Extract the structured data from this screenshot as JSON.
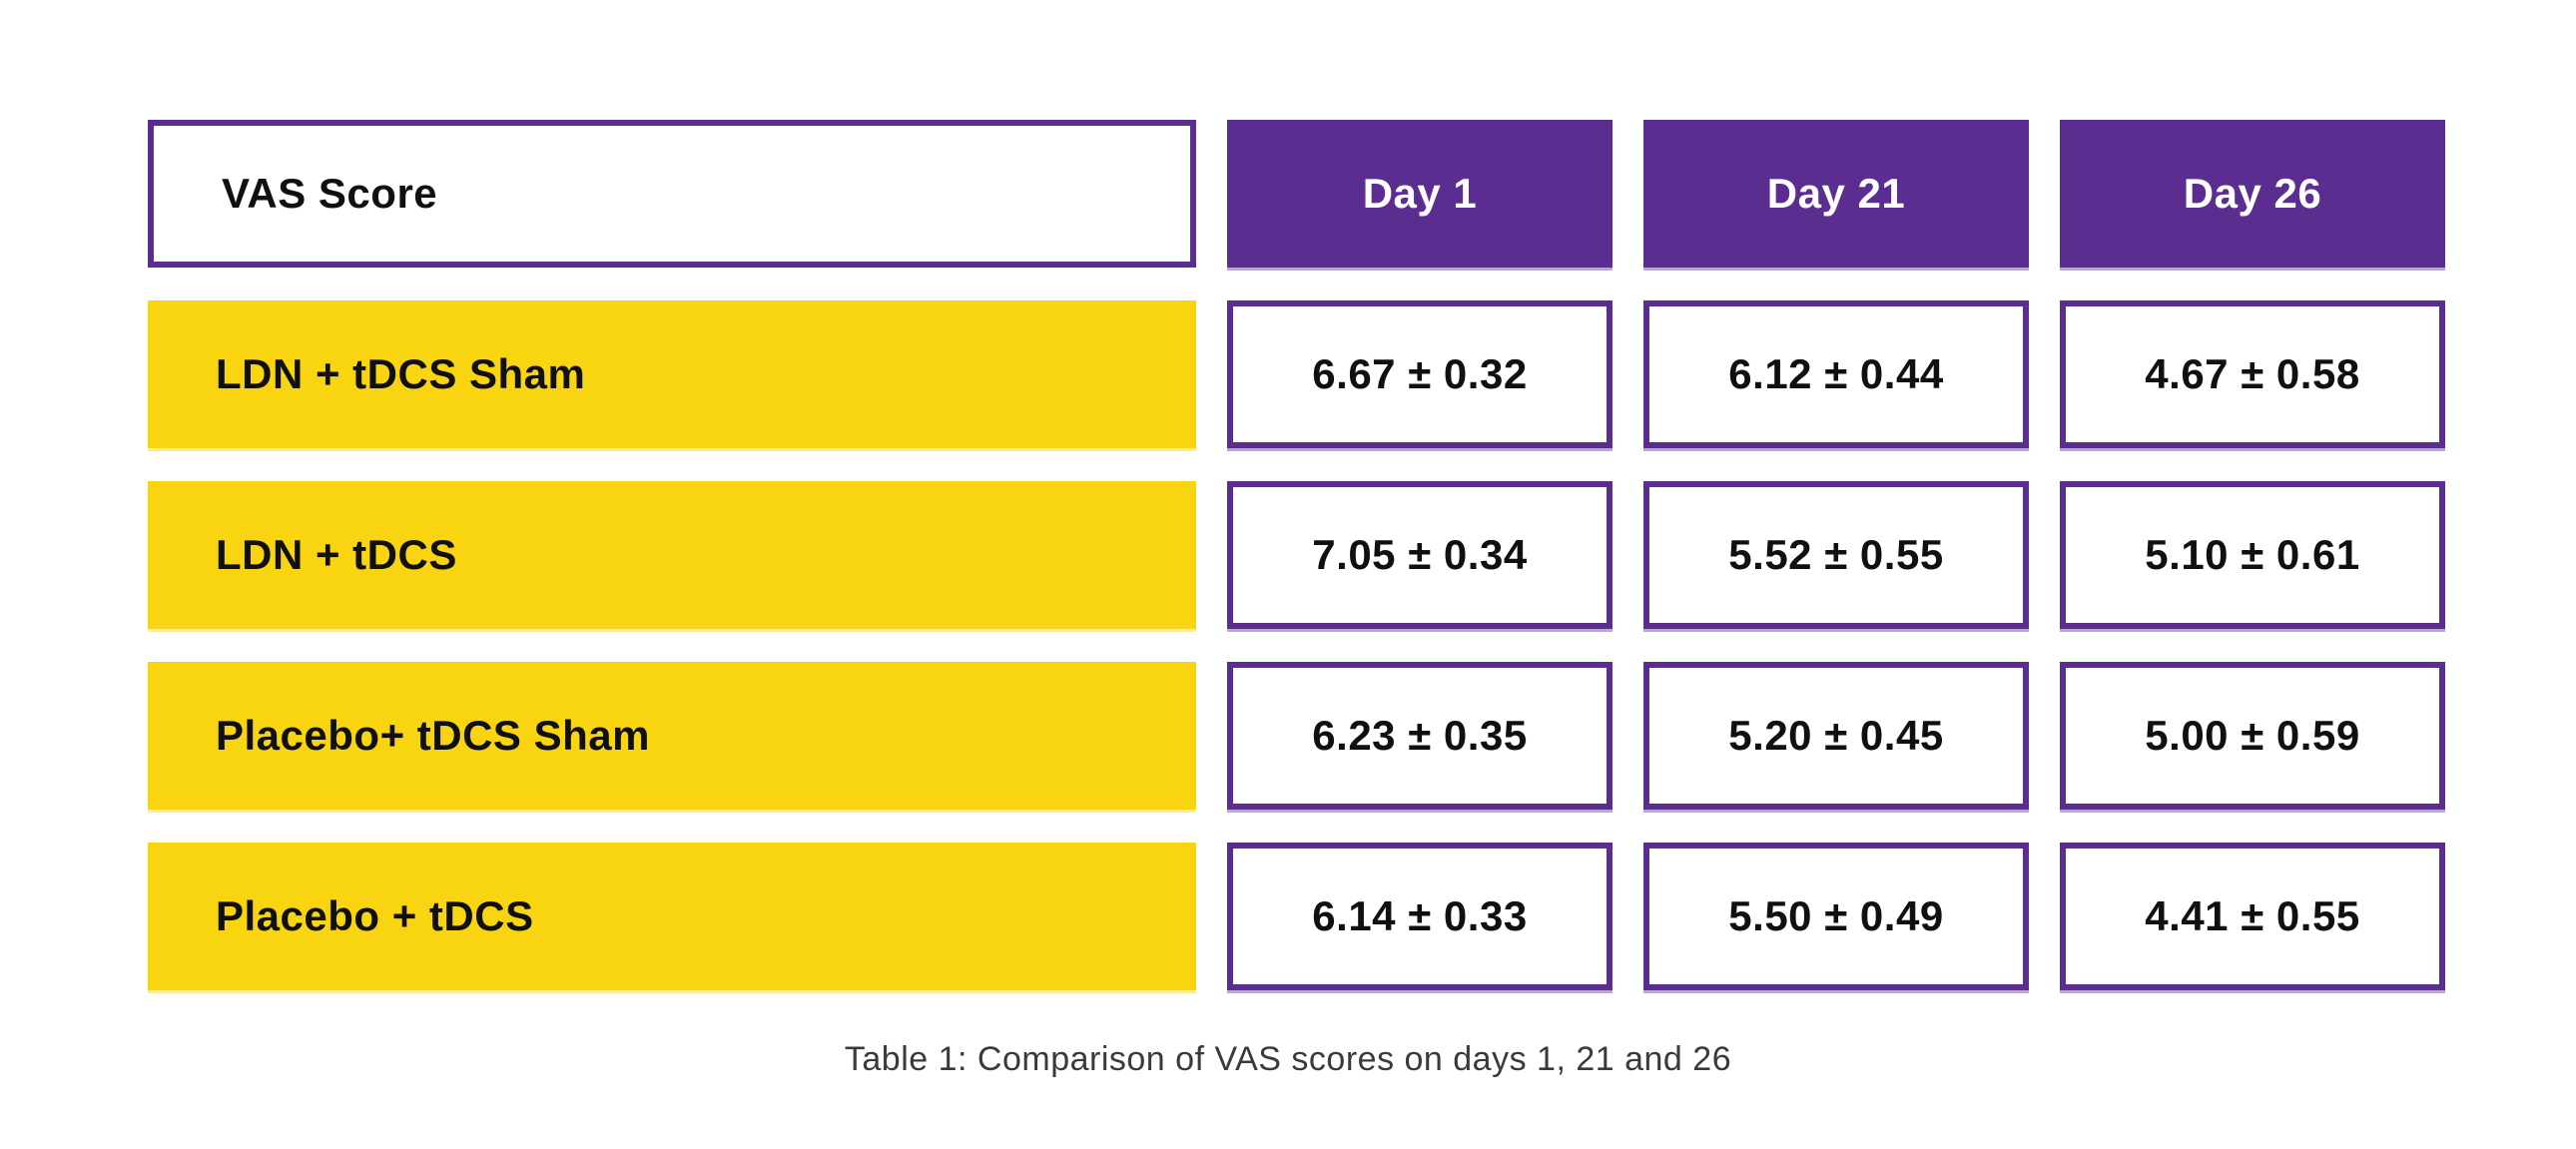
{
  "table": {
    "header": {
      "label": "VAS Score",
      "columns": [
        "Day 1",
        "Day 21",
        "Day 26"
      ]
    },
    "rows": [
      {
        "label": "LDN + tDCS Sham",
        "values": [
          "6.67 ± 0.32",
          "6.12 ± 0.44",
          "4.67 ± 0.58"
        ]
      },
      {
        "label": "LDN + tDCS",
        "values": [
          "7.05 ± 0.34",
          "5.52 ± 0.55",
          "5.10 ± 0.61"
        ]
      },
      {
        "label": "Placebo+ tDCS Sham",
        "values": [
          "6.23 ± 0.35",
          "5.20 ± 0.45",
          "5.00 ± 0.59"
        ]
      },
      {
        "label": "Placebo + tDCS",
        "values": [
          "6.14 ± 0.33",
          "5.50 ± 0.49",
          "4.41 ± 0.55"
        ]
      }
    ],
    "caption": "Table 1: Comparison of VAS scores on days 1, 21 and 26"
  },
  "colors": {
    "purple": "#5b2d91",
    "yellow": "#f8d411",
    "cell-text": "#101010",
    "caption-text": "#3a3a3a"
  },
  "chart_data": {
    "type": "table",
    "title": "Table 1: Comparison of VAS scores on days 1, 21 and 26",
    "columns": [
      "VAS Score",
      "Day 1",
      "Day 21",
      "Day 26"
    ],
    "rows": [
      [
        "LDN + tDCS Sham",
        "6.67 ± 0.32",
        "6.12 ± 0.44",
        "4.67 ± 0.58"
      ],
      [
        "LDN + tDCS",
        "7.05 ± 0.34",
        "5.52 ± 0.55",
        "5.10 ± 0.61"
      ],
      [
        "Placebo+ tDCS Sham",
        "6.23 ± 0.35",
        "5.20 ± 0.45",
        "5.00 ± 0.59"
      ],
      [
        "Placebo + tDCS",
        "6.14 ± 0.33",
        "5.50 ± 0.49",
        "4.41 ± 0.55"
      ]
    ],
    "values_numeric": {
      "means": [
        [
          6.67,
          6.12,
          4.67
        ],
        [
          7.05,
          5.52,
          5.1
        ],
        [
          6.23,
          5.2,
          5.0
        ],
        [
          6.14,
          5.5,
          4.41
        ]
      ],
      "sds": [
        [
          0.32,
          0.44,
          0.58
        ],
        [
          0.34,
          0.55,
          0.61
        ],
        [
          0.35,
          0.45,
          0.59
        ],
        [
          0.33,
          0.49,
          0.55
        ]
      ]
    }
  }
}
